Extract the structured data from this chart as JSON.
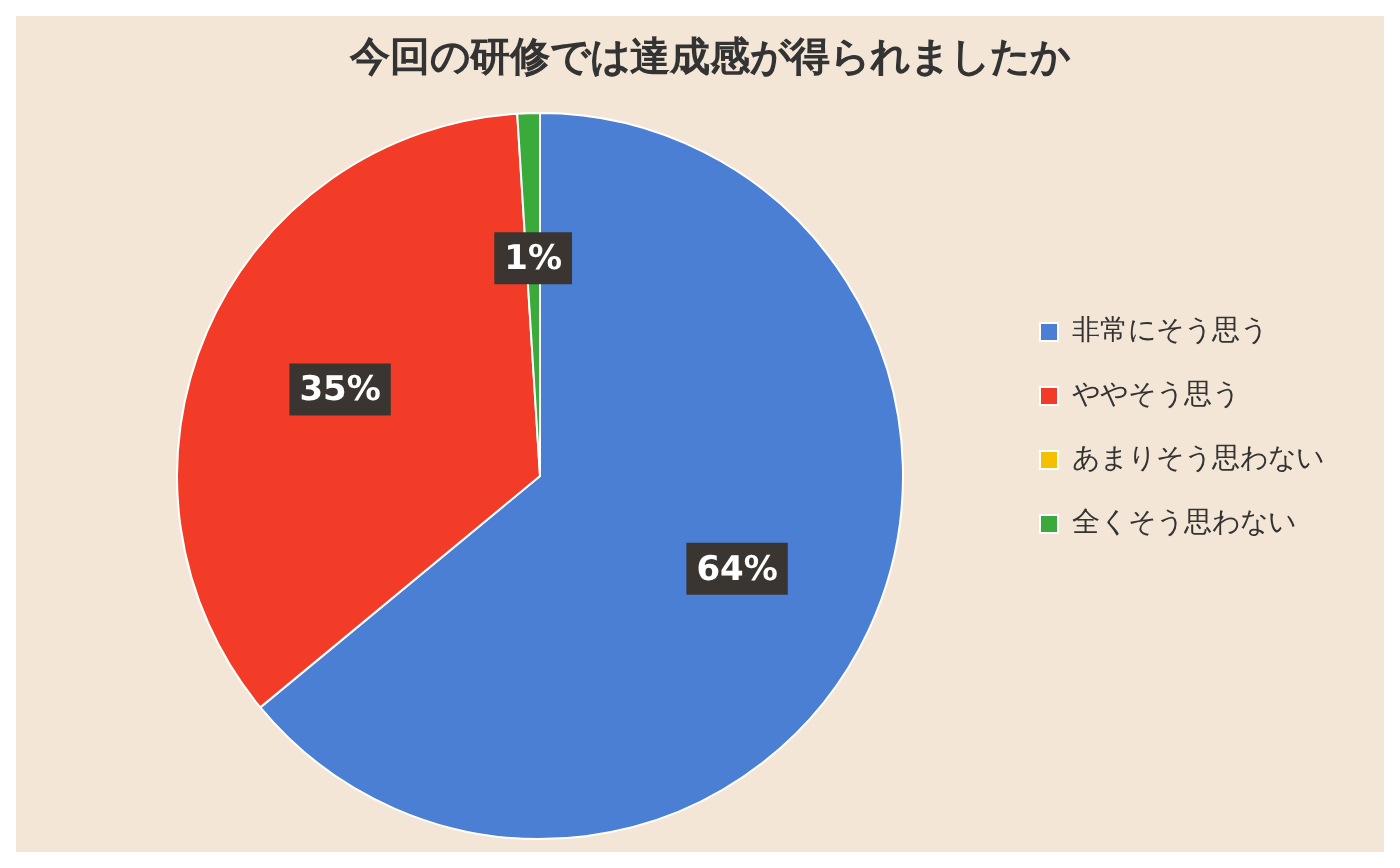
{
  "chart_data": {
    "type": "pie",
    "title": "今回の研修では達成感が得られましたか",
    "categories": [
      "非常にそう思う",
      "ややそう思う",
      "あまりそう思わない",
      "全くそう思わない"
    ],
    "values": [
      64,
      35,
      0,
      1
    ],
    "colors": [
      "#4a7fd4",
      "#f23c28",
      "#f5c000",
      "#3aaa3a"
    ],
    "value_labels": [
      "64%",
      "35%",
      null,
      "1%"
    ],
    "legend": "right"
  }
}
